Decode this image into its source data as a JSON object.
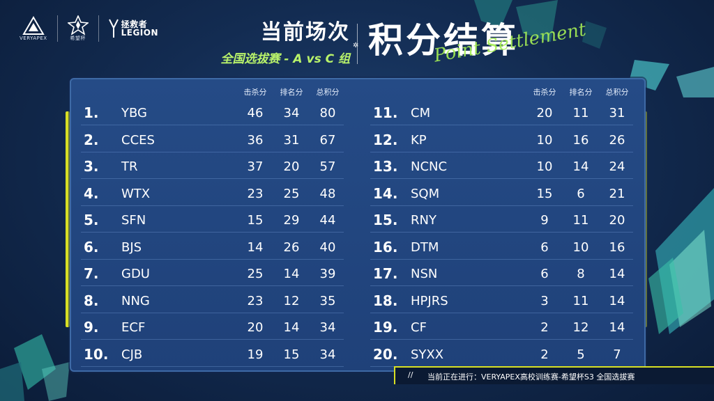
{
  "logos": {
    "veryapex": "VERYAPEX",
    "hope_cup": "希望杯",
    "legion_cn": "拯救者",
    "legion_en": "LEGION"
  },
  "header": {
    "title": "当前场次",
    "subtitle": "全国选拔赛 - A vs C 组",
    "big_title": "积分结算",
    "script_title": "Point Settlement"
  },
  "columns": {
    "kills": "击杀分",
    "placement": "排名分",
    "total": "总积分"
  },
  "standings_left": [
    {
      "rank": "1.",
      "team": "YBG",
      "kills": "46",
      "placement": "34",
      "total": "80"
    },
    {
      "rank": "2.",
      "team": "CCES",
      "kills": "36",
      "placement": "31",
      "total": "67"
    },
    {
      "rank": "3.",
      "team": "TR",
      "kills": "37",
      "placement": "20",
      "total": "57"
    },
    {
      "rank": "4.",
      "team": "WTX",
      "kills": "23",
      "placement": "25",
      "total": "48"
    },
    {
      "rank": "5.",
      "team": "SFN",
      "kills": "15",
      "placement": "29",
      "total": "44"
    },
    {
      "rank": "6.",
      "team": "BJS",
      "kills": "14",
      "placement": "26",
      "total": "40"
    },
    {
      "rank": "7.",
      "team": "GDU",
      "kills": "25",
      "placement": "14",
      "total": "39"
    },
    {
      "rank": "8.",
      "team": "NNG",
      "kills": "23",
      "placement": "12",
      "total": "35"
    },
    {
      "rank": "9.",
      "team": "ECF",
      "kills": "20",
      "placement": "14",
      "total": "34"
    },
    {
      "rank": "10.",
      "team": "CJB",
      "kills": "19",
      "placement": "15",
      "total": "34"
    }
  ],
  "standings_right": [
    {
      "rank": "11.",
      "team": "CM",
      "kills": "20",
      "placement": "11",
      "total": "31"
    },
    {
      "rank": "12.",
      "team": "KP",
      "kills": "10",
      "placement": "16",
      "total": "26"
    },
    {
      "rank": "13.",
      "team": "NCNC",
      "kills": "10",
      "placement": "14",
      "total": "24"
    },
    {
      "rank": "14.",
      "team": "SQM",
      "kills": "15",
      "placement": "6",
      "total": "21"
    },
    {
      "rank": "15.",
      "team": "RNY",
      "kills": "9",
      "placement": "11",
      "total": "20"
    },
    {
      "rank": "16.",
      "team": "DTM",
      "kills": "6",
      "placement": "10",
      "total": "16"
    },
    {
      "rank": "17.",
      "team": "NSN",
      "kills": "6",
      "placement": "8",
      "total": "14"
    },
    {
      "rank": "18.",
      "team": "HPJRS",
      "kills": "3",
      "placement": "11",
      "total": "14"
    },
    {
      "rank": "19.",
      "team": "CF",
      "kills": "2",
      "placement": "12",
      "total": "14"
    },
    {
      "rank": "20.",
      "team": "SYXX",
      "kills": "2",
      "placement": "5",
      "total": "7"
    }
  ],
  "footer": {
    "slashes": "//",
    "text": "当前正在进行：VERYAPEX高校训练赛-希望杯S3 全国选拔赛"
  },
  "colors": {
    "accent_green": "#b9f36a",
    "accent_yellow": "#d8e024",
    "panel": "#234780"
  }
}
